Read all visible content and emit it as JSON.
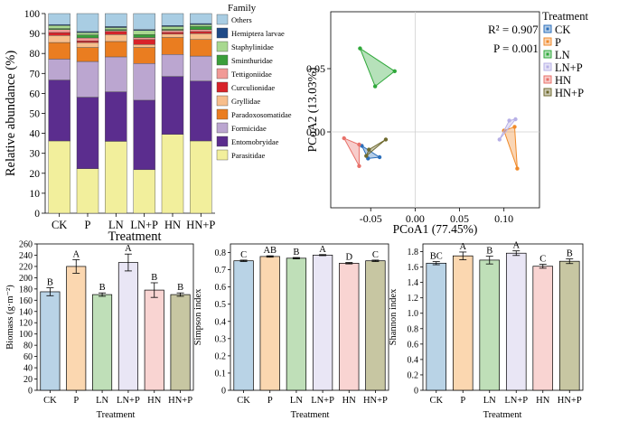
{
  "colors": {
    "CK": "#b9d3e6",
    "P": "#fbd7b0",
    "LN": "#bfdfb8",
    "LN+P": "#e9e6f5",
    "HN": "#f9d4d2",
    "HN+P": "#c7c6a2",
    "CK_line": "#2c6fbb",
    "P_line": "#f08a2a",
    "LN_line": "#2fa83a",
    "LN+P_line": "#b7b0e6",
    "HN_line": "#e8716a",
    "HN+P_line": "#6f6a2e"
  },
  "chart_data": [
    {
      "type": "stacked-bar",
      "id": "family",
      "xlabel": "Treatment",
      "ylabel": "Relative abundance (%)",
      "ylim": [
        0,
        100
      ],
      "yticks": [
        0,
        10,
        20,
        30,
        40,
        50,
        60,
        70,
        80,
        90,
        100
      ],
      "categories": [
        "CK",
        "P",
        "LN",
        "LN+P",
        "HN",
        "HN+P"
      ],
      "legend_title": "Family",
      "series": [
        {
          "name": "Parasitidae",
          "color": "#f2ef9c",
          "values": [
            36.2,
            22.3,
            36.0,
            21.8,
            39.5,
            36.2
          ]
        },
        {
          "name": "Entomobryidae",
          "color": "#5b2d8e",
          "values": [
            30.5,
            35.8,
            24.8,
            34.8,
            29.0,
            30.0
          ]
        },
        {
          "name": "Formicidae",
          "color": "#bba6d0",
          "values": [
            10.5,
            17.9,
            17.5,
            18.4,
            11.0,
            12.5
          ]
        },
        {
          "name": "Paradoxosomatidae",
          "color": "#ea7d20",
          "values": [
            8.3,
            7.0,
            7.7,
            8.0,
            8.5,
            8.3
          ]
        },
        {
          "name": "Gryllidae",
          "color": "#f7be8c",
          "values": [
            3.5,
            2.5,
            3.5,
            1.5,
            1.8,
            3.0
          ]
        },
        {
          "name": "Curculionidae",
          "color": "#d8232a",
          "values": [
            1.5,
            0.8,
            1.5,
            2.5,
            0.8,
            1.0
          ]
        },
        {
          "name": "Tettigoniidae",
          "color": "#f19a96",
          "values": [
            1.5,
            1.5,
            0.5,
            1.0,
            1.0,
            1.0
          ]
        },
        {
          "name": "Sminthuridae",
          "color": "#3a9e3a",
          "values": [
            0.5,
            1.5,
            0.5,
            1.5,
            0.5,
            1.5
          ]
        },
        {
          "name": "Staphylinidae",
          "color": "#a8d890",
          "values": [
            1.5,
            1.2,
            1.0,
            2.0,
            1.4,
            1.0
          ]
        },
        {
          "name": "Hemiptera larvae",
          "color": "#1f4a87",
          "values": [
            0.5,
            0.5,
            0.5,
            0.5,
            0.5,
            0.5
          ]
        },
        {
          "name": "Others",
          "color": "#a9cde3",
          "values": [
            5.5,
            9.0,
            6.5,
            8.0,
            6.0,
            5.0
          ]
        }
      ]
    },
    {
      "type": "scatter",
      "id": "pcoa",
      "xlabel": "PCoA1 (77.45%)",
      "ylabel": "PCoA2 (13.03%)",
      "xlim": [
        -0.095,
        0.14
      ],
      "ylim": [
        -0.06,
        0.095
      ],
      "xticks": [
        -0.05,
        0.0,
        0.05,
        0.1
      ],
      "xtick_labels": [
        "-0.05",
        "0.00",
        "0.05",
        "0.10"
      ],
      "yticks": [
        0.0,
        0.05
      ],
      "ytick_labels": [
        "0.00",
        "0.05"
      ],
      "stat_r2": "R² = 0.907",
      "stat_p": "P = 0.001",
      "legend_title": "Treatment",
      "groups": [
        {
          "name": "CK",
          "points": [
            [
              -0.06,
              -0.011
            ],
            [
              -0.053,
              -0.021
            ],
            [
              -0.04,
              -0.02
            ]
          ]
        },
        {
          "name": "P",
          "points": [
            [
              0.1,
              0.001
            ],
            [
              0.112,
              0.004
            ],
            [
              0.115,
              -0.029
            ]
          ]
        },
        {
          "name": "LN",
          "points": [
            [
              -0.062,
              0.066
            ],
            [
              -0.023,
              0.048
            ],
            [
              -0.045,
              0.036
            ]
          ]
        },
        {
          "name": "LN+P",
          "points": [
            [
              0.095,
              -0.006
            ],
            [
              0.106,
              0.009
            ],
            [
              0.113,
              0.01
            ]
          ]
        },
        {
          "name": "HN",
          "points": [
            [
              -0.08,
              -0.005
            ],
            [
              -0.063,
              -0.01
            ],
            [
              -0.063,
              -0.027
            ]
          ]
        },
        {
          "name": "HN+P",
          "points": [
            [
              -0.055,
              -0.019
            ],
            [
              -0.052,
              -0.014
            ],
            [
              -0.033,
              -0.006
            ]
          ]
        }
      ]
    },
    {
      "type": "bar",
      "id": "biomass",
      "xlabel": "Treatment",
      "ylabel": "Biomass (g·m⁻²)",
      "ylim": [
        0,
        260
      ],
      "yticks": [
        0,
        20,
        40,
        60,
        80,
        100,
        120,
        140,
        160,
        180,
        200,
        220,
        240,
        260
      ],
      "categories": [
        "CK",
        "P",
        "LN",
        "LN+P",
        "HN",
        "HN+P"
      ],
      "values": [
        175,
        220,
        170,
        227,
        178,
        170
      ],
      "errors": [
        7,
        12,
        3,
        15,
        13,
        3
      ],
      "letters": [
        "B",
        "A",
        "B",
        "A",
        "B",
        "B"
      ]
    },
    {
      "type": "bar",
      "id": "simpson",
      "xlabel": "Treatment",
      "ylabel": "Simpson index",
      "ylim": [
        0,
        0.85
      ],
      "yticks": [
        0,
        0.1,
        0.2,
        0.3,
        0.4,
        0.5,
        0.6,
        0.7,
        0.8
      ],
      "ytick_labels": [
        "0",
        "0.1",
        "0.2",
        "0.3",
        "0.4",
        "0.5",
        "0.6",
        "0.7",
        "0.8"
      ],
      "categories": [
        "CK",
        "P",
        "LN",
        "LN+P",
        "HN",
        "HN+P"
      ],
      "values": [
        0.752,
        0.777,
        0.767,
        0.785,
        0.738,
        0.752
      ],
      "errors": [
        0.004,
        0.004,
        0.004,
        0.003,
        0.004,
        0.004
      ],
      "letters": [
        "C",
        "AB",
        "B",
        "A",
        "D",
        "C"
      ]
    },
    {
      "type": "bar",
      "id": "shannon",
      "xlabel": "Treatment",
      "ylabel": "Shannon index",
      "ylim": [
        0,
        1.9
      ],
      "yticks": [
        0,
        0.2,
        0.4,
        0.6,
        0.8,
        1.0,
        1.2,
        1.4,
        1.6,
        1.8
      ],
      "ytick_labels": [
        "0",
        "0.2",
        "0.4",
        "0.6",
        "0.8",
        "1.0",
        "1.2",
        "1.4",
        "1.6",
        "1.8"
      ],
      "categories": [
        "CK",
        "P",
        "LN",
        "LN+P",
        "HN",
        "HN+P"
      ],
      "values": [
        1.65,
        1.745,
        1.69,
        1.78,
        1.61,
        1.675
      ],
      "errors": [
        0.02,
        0.05,
        0.05,
        0.03,
        0.025,
        0.03
      ],
      "letters": [
        "BC",
        "A",
        "B",
        "A",
        "C",
        "B"
      ]
    }
  ]
}
